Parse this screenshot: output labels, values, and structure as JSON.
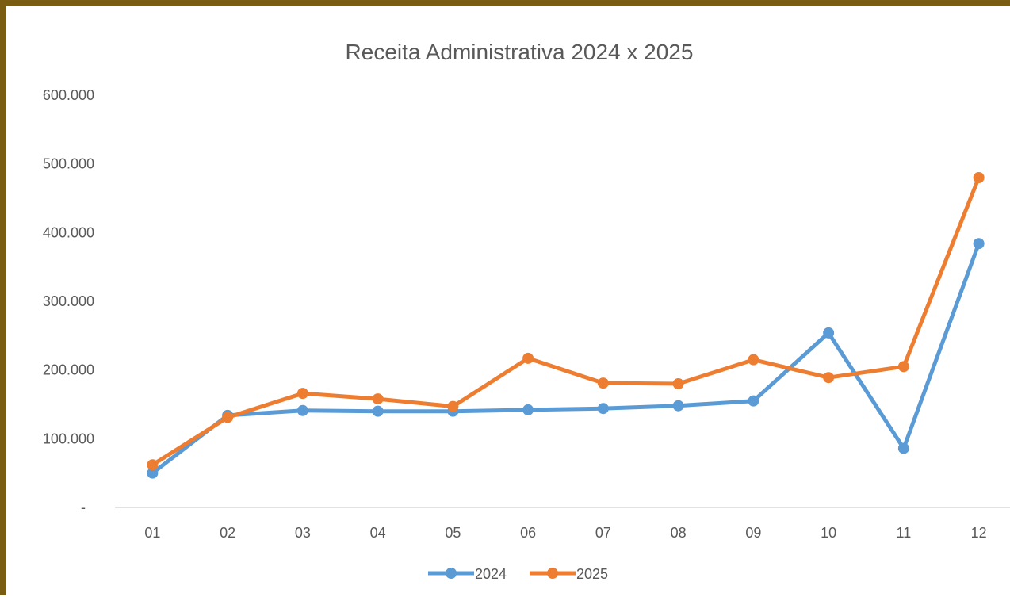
{
  "chart_data": {
    "type": "line",
    "title": "Receita Administrativa 2024 x 2025",
    "xlabel": "",
    "ylabel": "",
    "categories": [
      "01",
      "02",
      "03",
      "04",
      "05",
      "06",
      "07",
      "08",
      "09",
      "10",
      "11",
      "12"
    ],
    "y_ticks": [
      {
        "value": 0,
        "label": "-"
      },
      {
        "value": 100000,
        "label": "100.000"
      },
      {
        "value": 200000,
        "label": "200.000"
      },
      {
        "value": 300000,
        "label": "300.000"
      },
      {
        "value": 400000,
        "label": "400.000"
      },
      {
        "value": 500000,
        "label": "500.000"
      },
      {
        "value": 600000,
        "label": "600.000"
      }
    ],
    "ylim": [
      0,
      600000
    ],
    "grid": false,
    "legend_position": "bottom",
    "series": [
      {
        "name": "2024",
        "color": "#5b9bd5",
        "values": [
          50000,
          134000,
          141000,
          140000,
          140000,
          142000,
          144000,
          148000,
          155000,
          254000,
          86000,
          384000
        ]
      },
      {
        "name": "2025",
        "color": "#ed7d31",
        "values": [
          62000,
          131000,
          166000,
          158000,
          147000,
          217000,
          181000,
          180000,
          215000,
          189000,
          205000,
          480000
        ]
      }
    ]
  }
}
